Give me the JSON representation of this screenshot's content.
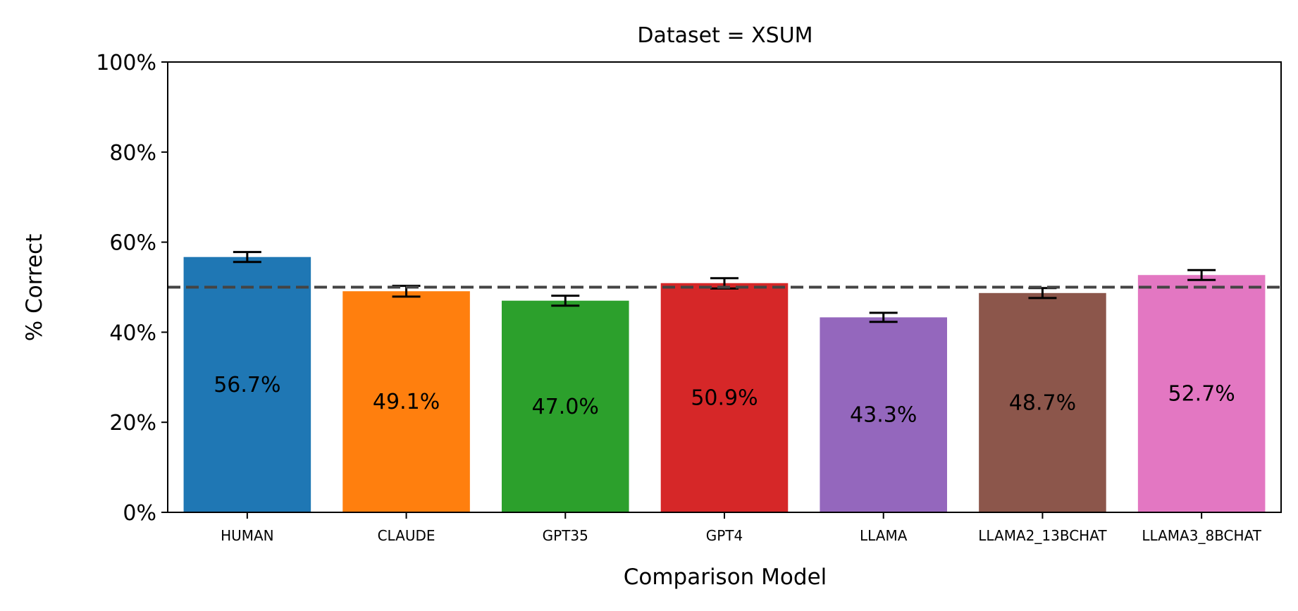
{
  "chart_data": {
    "type": "bar",
    "title": "Dataset = XSUM",
    "xlabel": "Comparison Model",
    "ylabel": "% Correct",
    "ylim": [
      0,
      100
    ],
    "yticks": [
      0,
      20,
      40,
      60,
      80,
      100
    ],
    "ytick_labels": [
      "0%",
      "20%",
      "40%",
      "60%",
      "80%",
      "100%"
    ],
    "categories": [
      "HUMAN",
      "CLAUDE",
      "GPT35",
      "GPT4",
      "LLAMA",
      "LLAMA2_13BCHAT",
      "LLAMA3_8BCHAT"
    ],
    "values": [
      56.7,
      49.1,
      47.0,
      50.9,
      43.3,
      48.7,
      52.7
    ],
    "value_labels": [
      "56.7%",
      "49.1%",
      "47.0%",
      "50.9%",
      "43.3%",
      "48.7%",
      "52.7%"
    ],
    "error_low": [
      55.6,
      47.9,
      45.9,
      49.7,
      42.3,
      47.6,
      51.6
    ],
    "error_high": [
      57.8,
      50.3,
      48.1,
      52.0,
      44.3,
      49.8,
      53.8
    ],
    "colors": [
      "#1f77b4",
      "#ff7f0e",
      "#2ca02c",
      "#d62728",
      "#9467bd",
      "#8c564b",
      "#e377c2"
    ],
    "reference_line": 50,
    "reference_line_style": "dashed",
    "reference_line_color": "#444444",
    "grid": false,
    "legend": "none"
  }
}
